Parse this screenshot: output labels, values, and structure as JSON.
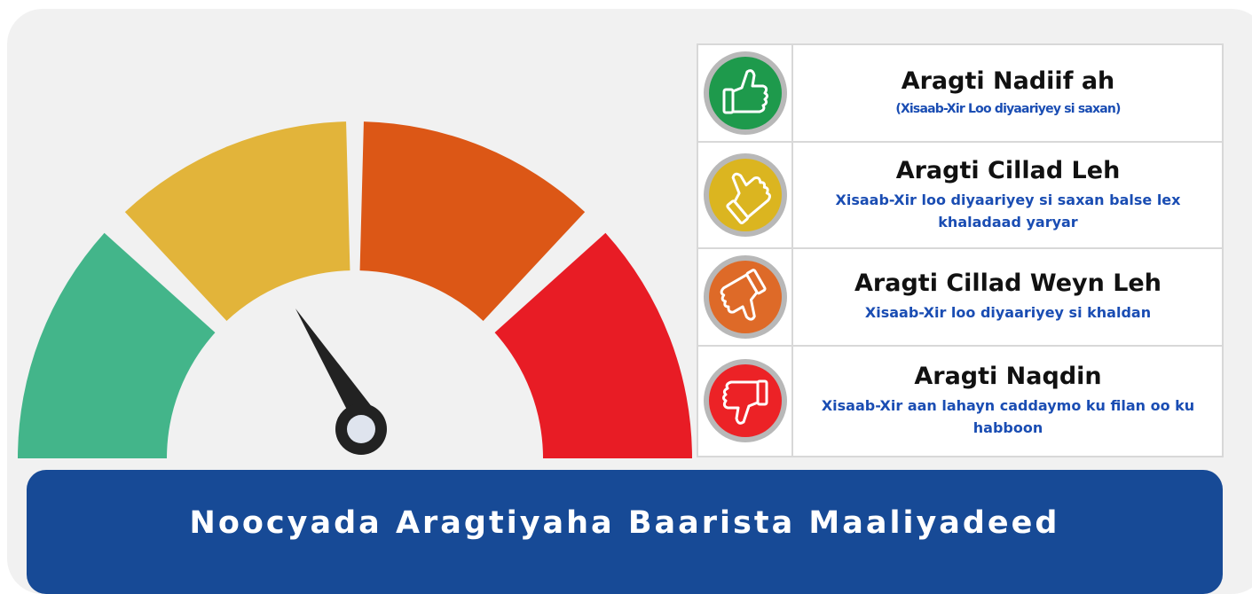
{
  "title": "Noocyada Aragtiyaha Baarista Maaliyadeed",
  "rows": [
    {
      "title": "Aragti Nadiif ah",
      "description": "(Xisaab-Xir Loo diyaariyey si saxan)"
    },
    {
      "title": "Aragti Cillad Leh",
      "description": "Xisaab-Xir loo diyaariyey si saxan balse lex khaladaad yaryar"
    },
    {
      "title": "Aragti Cillad Weyn Leh",
      "description": "Xisaab-Xir loo diyaariyey si khaldan"
    },
    {
      "title": "Aragti Naqdin",
      "description": "Xisaab-Xir aan lahayn caddaymo ku filan oo ku habboon"
    }
  ]
}
